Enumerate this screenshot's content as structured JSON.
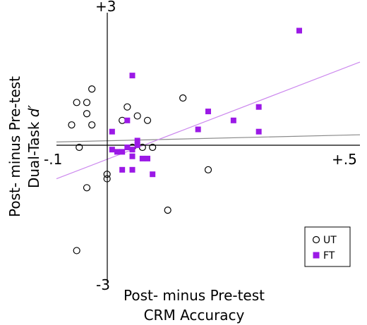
{
  "chart_data": {
    "type": "scatter",
    "xlabel": [
      "Post- minus Pre-test",
      "CRM Accuracy"
    ],
    "ylabel": [
      "Post- minus Pre-test",
      "Dual-Task d′"
    ],
    "ylabel_line2_prefix": "Dual-Task ",
    "ylabel_line2_italic": "d′",
    "xlim": [
      -0.1,
      0.5
    ],
    "ylim": [
      -3,
      3
    ],
    "x_ticks": {
      "min": "-.1",
      "max": "+.5"
    },
    "y_ticks": {
      "max": "+3",
      "min": "-3"
    },
    "legend": {
      "placement": "bottom-right"
    },
    "series": [
      {
        "name": "UT",
        "marker": "open-circle",
        "color": "#000000",
        "fit": {
          "y_at_xmin": 0.12,
          "y_at_xmax": 0.28,
          "color": "#8a8a8a"
        },
        "points": [
          {
            "x": -0.07,
            "y": 0.5
          },
          {
            "x": -0.06,
            "y": 1.0
          },
          {
            "x": -0.055,
            "y": 0.0
          },
          {
            "x": -0.04,
            "y": 0.75
          },
          {
            "x": -0.04,
            "y": 1.0
          },
          {
            "x": -0.03,
            "y": 1.3
          },
          {
            "x": -0.03,
            "y": 0.5
          },
          {
            "x": -0.04,
            "y": -0.9
          },
          {
            "x": -0.06,
            "y": -2.3
          },
          {
            "x": 0.0,
            "y": -0.6
          },
          {
            "x": 0.0,
            "y": -0.7
          },
          {
            "x": 0.03,
            "y": 0.6
          },
          {
            "x": 0.04,
            "y": 0.9
          },
          {
            "x": 0.05,
            "y": 0.0
          },
          {
            "x": 0.06,
            "y": 0.7
          },
          {
            "x": 0.08,
            "y": 0.6
          },
          {
            "x": 0.07,
            "y": 0.0
          },
          {
            "x": 0.09,
            "y": 0.0
          },
          {
            "x": 0.12,
            "y": -1.4
          },
          {
            "x": 0.15,
            "y": 1.1
          },
          {
            "x": 0.2,
            "y": -0.5
          }
        ]
      },
      {
        "name": "FT",
        "marker": "filled-square",
        "color": "#9b19e6",
        "fit": {
          "y_at_xmin": -0.7,
          "y_at_xmax": 1.9,
          "color": "#cc88ee"
        },
        "points": [
          {
            "x": 0.05,
            "y": 1.6
          },
          {
            "x": 0.38,
            "y": 2.6
          },
          {
            "x": 0.04,
            "y": 0.6
          },
          {
            "x": 0.01,
            "y": 0.35
          },
          {
            "x": 0.06,
            "y": 0.15
          },
          {
            "x": 0.06,
            "y": 0.05
          },
          {
            "x": 0.05,
            "y": -0.05
          },
          {
            "x": 0.04,
            "y": 0.0
          },
          {
            "x": 0.03,
            "y": -0.1
          },
          {
            "x": 0.02,
            "y": -0.1
          },
          {
            "x": 0.01,
            "y": -0.05
          },
          {
            "x": 0.07,
            "y": -0.25
          },
          {
            "x": 0.08,
            "y": -0.25
          },
          {
            "x": 0.05,
            "y": -0.2
          },
          {
            "x": 0.03,
            "y": -0.5
          },
          {
            "x": 0.05,
            "y": -0.5
          },
          {
            "x": 0.09,
            "y": -0.6
          },
          {
            "x": 0.2,
            "y": 0.8
          },
          {
            "x": 0.25,
            "y": 0.6
          },
          {
            "x": 0.3,
            "y": 0.9
          },
          {
            "x": 0.3,
            "y": 0.35
          },
          {
            "x": 0.18,
            "y": 0.4
          }
        ]
      }
    ]
  }
}
